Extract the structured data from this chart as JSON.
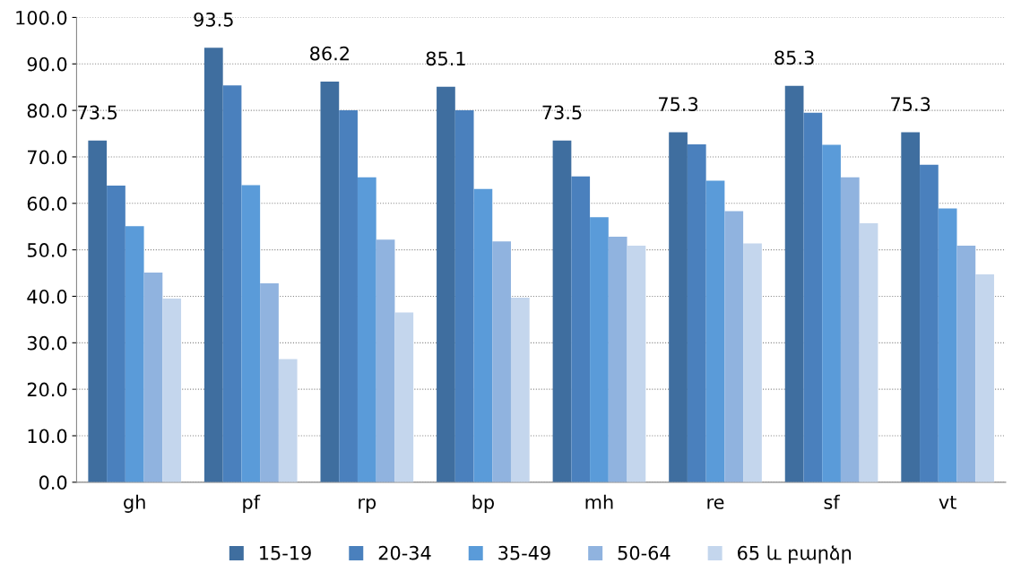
{
  "chart_data": {
    "type": "bar",
    "categories": [
      "gh",
      "pf",
      "rp",
      "bp",
      "mh",
      "re",
      "sf",
      "vt"
    ],
    "series": [
      {
        "name": "15-19",
        "color": "#3f6e9f",
        "values": [
          73.5,
          93.5,
          86.2,
          85.1,
          73.5,
          75.3,
          85.3,
          75.3
        ],
        "value_labels": [
          "73.5",
          "93.5",
          "86.2",
          "85.1",
          "73.5",
          "75.3",
          "85.3",
          "75.3"
        ]
      },
      {
        "name": "20-34",
        "color": "#4a80bd",
        "values": [
          63.8,
          85.4,
          80.0,
          80.0,
          65.8,
          72.7,
          79.5,
          68.3
        ]
      },
      {
        "name": "35-49",
        "color": "#5a9bd9",
        "values": [
          55.1,
          63.9,
          65.6,
          63.1,
          57.0,
          64.9,
          72.6,
          58.9
        ]
      },
      {
        "name": "50-64",
        "color": "#90b3df",
        "values": [
          45.1,
          42.8,
          52.2,
          51.8,
          52.8,
          58.3,
          65.6,
          50.9
        ]
      },
      {
        "name": "65 և բարձր",
        "color": "#c4d6ed",
        "values": [
          39.5,
          26.5,
          36.5,
          39.7,
          50.9,
          51.4,
          55.7,
          44.7
        ]
      }
    ],
    "ylim": [
      0,
      100
    ],
    "yticks": [
      {
        "value": 0,
        "label": "0.0"
      },
      {
        "value": 10,
        "label": "10.0"
      },
      {
        "value": 20,
        "label": "20.0"
      },
      {
        "value": 30,
        "label": "30.0"
      },
      {
        "value": 40,
        "label": "40.0"
      },
      {
        "value": 50,
        "label": "50.0"
      },
      {
        "value": 60,
        "label": "60.0"
      },
      {
        "value": 70,
        "label": "70.0"
      },
      {
        "value": 80,
        "label": "80.0"
      },
      {
        "value": 90,
        "label": "90.0"
      },
      {
        "value": 100,
        "label": "100.0"
      }
    ],
    "grid": "y",
    "legend": "bottom"
  }
}
